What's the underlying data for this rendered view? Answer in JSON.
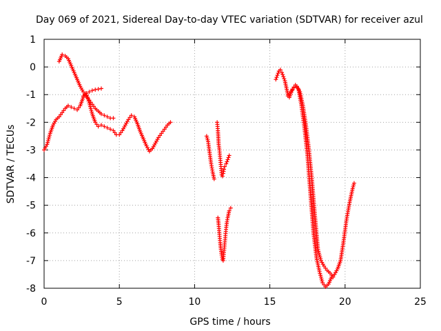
{
  "chart_data": {
    "type": "scatter",
    "title": "Day 069 of 2021, Sidereal Day-to-day VTEC variation (SDTVAR) for receiver azul",
    "xlabel": "GPS time / hours",
    "ylabel": "SDTVAR / TECUs",
    "xlim": [
      0,
      25
    ],
    "ylim": [
      -8,
      1
    ],
    "xticks": [
      "0",
      "5",
      "10",
      "15",
      "20",
      "25"
    ],
    "yticks": [
      "1",
      "0",
      "-1",
      "-2",
      "-3",
      "-4",
      "-5",
      "-6",
      "-7",
      "-8"
    ],
    "grid": true,
    "marker": "+",
    "series_color": "#ff0000",
    "segments": [
      {
        "x": [
          0.0,
          0.2,
          0.4,
          0.6,
          0.8,
          1.0,
          1.2,
          1.4,
          1.6,
          1.8,
          2.0,
          2.2,
          2.4,
          2.6,
          2.8,
          3.0,
          3.2,
          3.4,
          3.6,
          3.8,
          4.0,
          4.2,
          4.4,
          4.6,
          4.8,
          5.0,
          5.2,
          5.4,
          5.6,
          5.8,
          6.0,
          6.2,
          6.4,
          6.6,
          6.8,
          7.0,
          7.2,
          7.4,
          7.6,
          7.8,
          8.0,
          8.2,
          8.4
        ],
        "y": [
          -3.0,
          -2.8,
          -2.4,
          -2.1,
          -1.9,
          -1.8,
          -1.65,
          -1.5,
          -1.4,
          -1.45,
          -1.5,
          -1.55,
          -1.4,
          -1.1,
          -0.95,
          -1.3,
          -1.7,
          -2.0,
          -2.15,
          -2.1,
          -2.15,
          -2.2,
          -2.25,
          -2.3,
          -2.45,
          -2.45,
          -2.3,
          -2.1,
          -1.9,
          -1.75,
          -1.8,
          -2.05,
          -2.35,
          -2.6,
          -2.85,
          -3.05,
          -2.95,
          -2.75,
          -2.55,
          -2.4,
          -2.25,
          -2.1,
          -2.0
        ]
      },
      {
        "x": [
          1.0,
          1.2,
          1.4,
          1.6,
          1.8,
          2.0,
          2.2,
          2.4,
          2.6,
          2.8,
          3.0,
          3.2,
          3.4,
          3.6,
          3.8,
          4.0,
          4.2,
          4.4,
          4.6
        ],
        "y": [
          0.2,
          0.45,
          0.4,
          0.3,
          0.05,
          -0.2,
          -0.45,
          -0.7,
          -0.9,
          -1.05,
          -1.2,
          -1.35,
          -1.5,
          -1.6,
          -1.7,
          -1.75,
          -1.8,
          -1.85,
          -1.85
        ]
      },
      {
        "x": [
          2.6,
          2.8,
          3.0,
          3.2,
          3.4,
          3.6,
          3.8
        ],
        "y": [
          -1.05,
          -0.95,
          -0.9,
          -0.85,
          -0.82,
          -0.8,
          -0.78
        ]
      },
      {
        "x": [
          10.8,
          10.9,
          11.0,
          11.1,
          11.2,
          11.3
        ],
        "y": [
          -2.5,
          -2.7,
          -3.1,
          -3.5,
          -3.8,
          -4.05
        ]
      },
      {
        "x": [
          11.5,
          11.55,
          11.6,
          11.65,
          11.7,
          11.75,
          11.8,
          11.85,
          11.9,
          11.95,
          12.0,
          12.1,
          12.2,
          12.3
        ],
        "y": [
          -2.0,
          -2.3,
          -2.8,
          -3.0,
          -3.3,
          -3.6,
          -3.9,
          -3.95,
          -3.85,
          -3.7,
          -3.6,
          -3.5,
          -3.35,
          -3.2
        ]
      },
      {
        "x": [
          11.55,
          11.6,
          11.65,
          11.7,
          11.75,
          11.8,
          11.85,
          11.9,
          11.95,
          12.0,
          12.05,
          12.1,
          12.15,
          12.2,
          12.3,
          12.4
        ],
        "y": [
          -5.45,
          -5.7,
          -6.05,
          -6.35,
          -6.6,
          -6.8,
          -6.95,
          -7.0,
          -6.7,
          -6.4,
          -6.1,
          -5.8,
          -5.6,
          -5.45,
          -5.2,
          -5.1
        ]
      },
      {
        "x": [
          15.4,
          15.5,
          15.6,
          15.7,
          15.8,
          15.9,
          16.0,
          16.1,
          16.2,
          16.3,
          16.5,
          16.7,
          16.9,
          17.1,
          17.3,
          17.5,
          17.7,
          17.9,
          18.1,
          18.3,
          18.5,
          18.7,
          18.9,
          19.1,
          19.3,
          19.5,
          19.7,
          19.9,
          20.1,
          20.3,
          20.5,
          20.6
        ],
        "y": [
          -0.45,
          -0.3,
          -0.15,
          -0.1,
          -0.2,
          -0.35,
          -0.5,
          -0.75,
          -1.0,
          -1.1,
          -0.8,
          -0.65,
          -0.8,
          -1.4,
          -2.2,
          -3.2,
          -4.6,
          -6.0,
          -6.9,
          -7.4,
          -7.8,
          -7.95,
          -7.85,
          -7.6,
          -7.5,
          -7.3,
          -7.0,
          -6.3,
          -5.5,
          -4.9,
          -4.4,
          -4.2
        ]
      },
      {
        "x": [
          16.2,
          16.4,
          16.6,
          16.8,
          17.0,
          17.2,
          17.4,
          17.6,
          17.8,
          18.0,
          18.2,
          18.4,
          18.6,
          18.8,
          19.0,
          19.2
        ],
        "y": [
          -1.05,
          -0.9,
          -0.75,
          -0.7,
          -0.9,
          -1.4,
          -2.1,
          -3.0,
          -4.1,
          -5.4,
          -6.6,
          -7.0,
          -7.2,
          -7.35,
          -7.45,
          -7.6
        ]
      }
    ]
  }
}
